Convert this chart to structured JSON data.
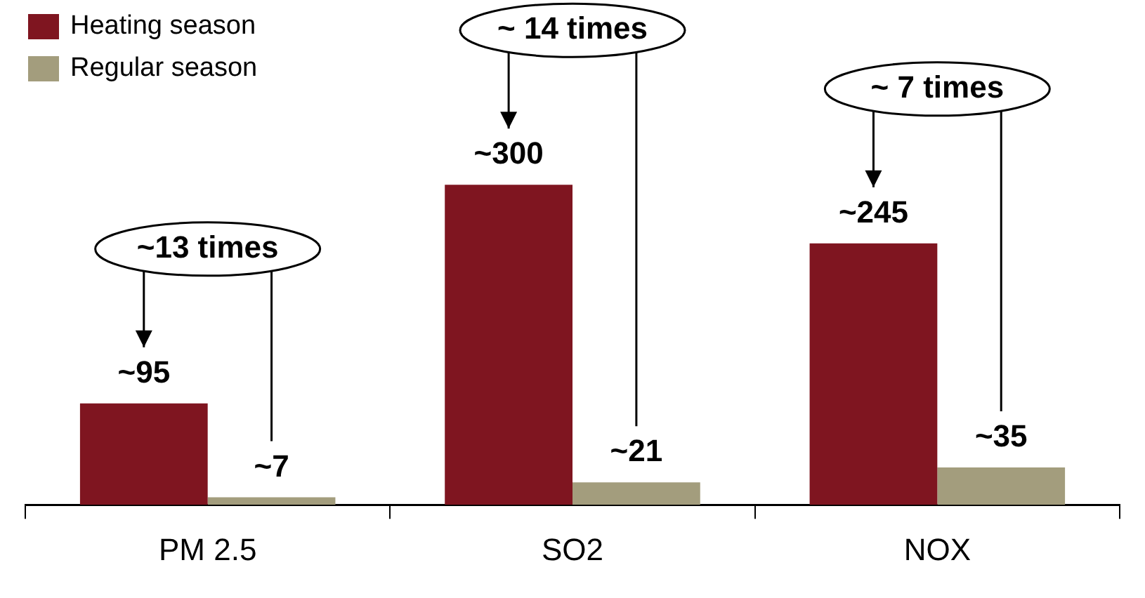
{
  "chart_data": {
    "type": "bar",
    "categories": [
      "PM 2.5",
      "SO2",
      "NOX"
    ],
    "series": [
      {
        "name": "Heating season",
        "color": "#7f1520",
        "values": [
          95,
          300,
          245
        ],
        "value_labels": [
          "~95",
          "~300",
          "~245"
        ]
      },
      {
        "name": "Regular season",
        "color": "#a39d7d",
        "values": [
          7,
          21,
          35
        ],
        "value_labels": [
          "~7",
          "~21",
          "~35"
        ]
      }
    ],
    "ylim": [
      0,
      460
    ],
    "tick_labels": "x",
    "legend": "top left",
    "annotations": [
      "~13 times",
      "~ 14 times",
      "~ 7 times"
    ]
  }
}
